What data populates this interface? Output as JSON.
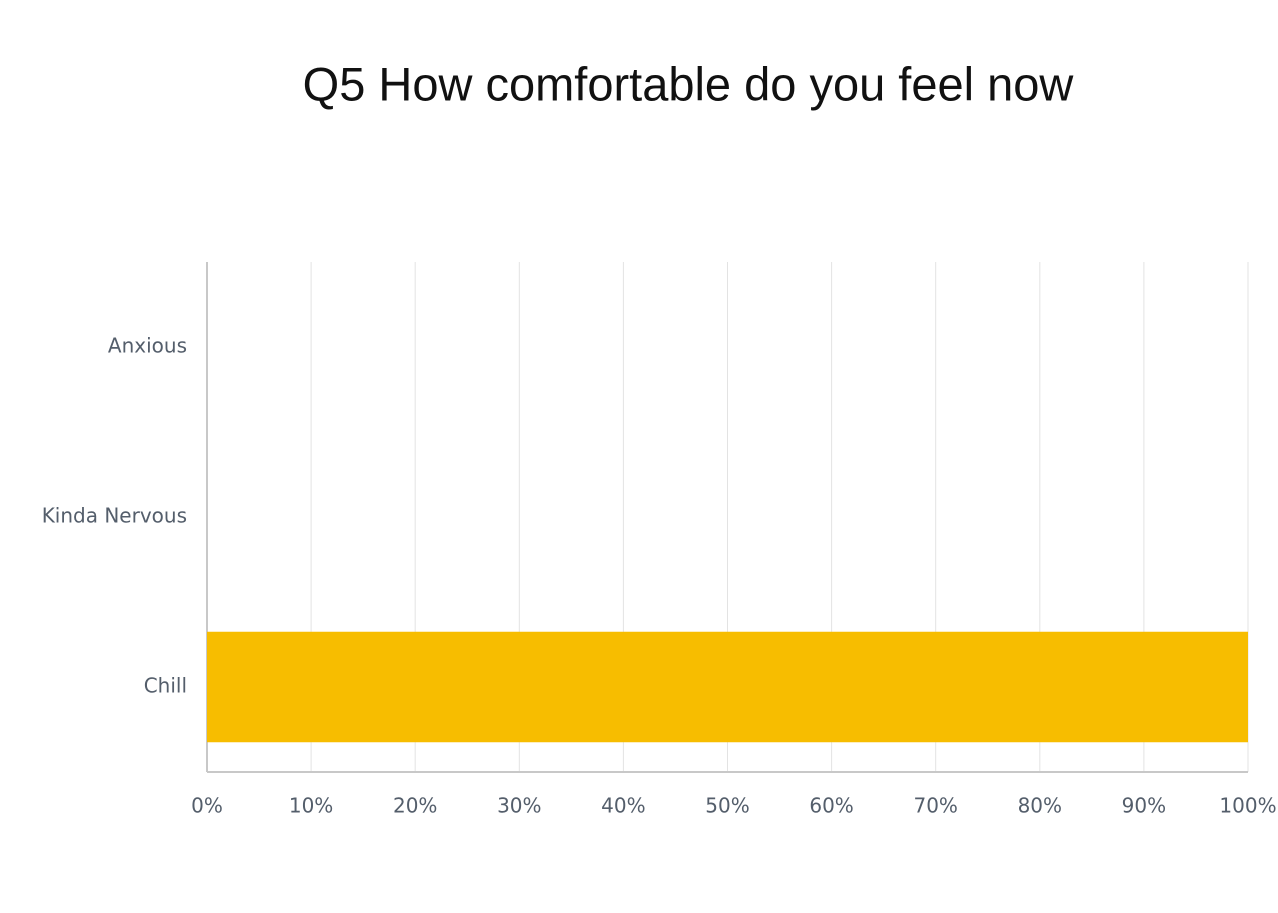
{
  "chart_data": {
    "type": "bar",
    "orientation": "horizontal",
    "title": "Q5 How comfortable do you feel now",
    "categories": [
      "Anxious",
      "Kinda Nervous",
      "Chill"
    ],
    "values": [
      0,
      0,
      100
    ],
    "color": "#f7bd00",
    "xlim": [
      0,
      100
    ],
    "xticks": [
      {
        "value": 0,
        "label": "0%"
      },
      {
        "value": 10,
        "label": "10%"
      },
      {
        "value": 20,
        "label": "20%"
      },
      {
        "value": 30,
        "label": "30%"
      },
      {
        "value": 40,
        "label": "40%"
      },
      {
        "value": 50,
        "label": "50%"
      },
      {
        "value": 60,
        "label": "60%"
      },
      {
        "value": 70,
        "label": "70%"
      },
      {
        "value": 80,
        "label": "80%"
      },
      {
        "value": 90,
        "label": "90%"
      },
      {
        "value": 100,
        "label": "100%"
      }
    ],
    "grid": true
  }
}
